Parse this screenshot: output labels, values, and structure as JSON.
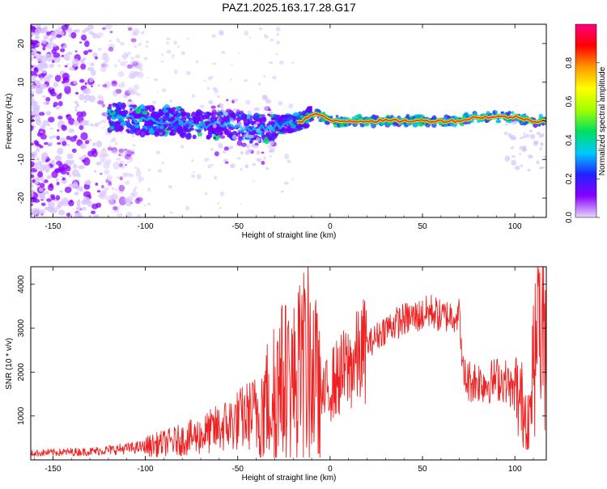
{
  "title": "PAZ1.2025.163.17.28.G17",
  "colors": {
    "snr_line": "#ee2222",
    "spectrum_ridge": "#ff2a2a",
    "scatter_main": "#8a00ff",
    "scatter_light": "#d7c3ff",
    "frame": "#000000"
  },
  "chart_data": [
    {
      "type": "heatmap",
      "title": "",
      "xlabel": "Height of straight line (km)",
      "ylabel": "Frequency (Hz)",
      "xlim": [
        -162,
        117
      ],
      "ylim": [
        -25,
        25
      ],
      "xticks": [
        -150,
        -100,
        -50,
        0,
        50,
        100
      ],
      "yticks": [
        -20,
        -10,
        0,
        10,
        20
      ],
      "colorbar": {
        "label": "Normalized spectral amplitude",
        "range": [
          0,
          1
        ],
        "ticks": [
          "0.0",
          "0.2",
          "0.4",
          "0.6",
          "0.8"
        ],
        "colors": [
          "#e8d8ff",
          "#8800ff",
          "#2222ff",
          "#00c8ff",
          "#00e060",
          "#a0ff00",
          "#ffff00",
          "#ff9900",
          "#ff0000",
          "#ff0080"
        ]
      },
      "ridge": {
        "x": [
          -115,
          -100,
          -85,
          -70,
          -55,
          -45,
          -35,
          -25,
          -15,
          -8,
          0,
          10,
          20,
          30,
          40,
          50,
          60,
          70,
          80,
          90,
          100,
          110,
          117
        ],
        "y": [
          1,
          0,
          0,
          -1,
          -1,
          -2,
          -2,
          -1,
          0,
          2,
          0,
          0,
          0,
          0,
          0,
          0,
          0,
          0,
          1,
          1,
          1,
          0,
          0
        ]
      }
    },
    {
      "type": "line",
      "title": "",
      "xlabel": "Height of straight line (km)",
      "ylabel": "SNR (10 * v/v)",
      "xlim": [
        -162,
        117
      ],
      "ylim": [
        0,
        4400
      ],
      "xticks": [
        -150,
        -100,
        -50,
        0,
        50,
        100
      ],
      "yticks": [
        1000,
        2000,
        3000,
        4000
      ],
      "series": [
        {
          "name": "",
          "x": [
            -162,
            -150,
            -130,
            -110,
            -100,
            -90,
            -80,
            -70,
            -60,
            -50,
            -40,
            -35,
            -30,
            -25,
            -20,
            -15,
            -10,
            -5,
            0,
            5,
            10,
            15,
            20,
            30,
            40,
            50,
            55,
            60,
            65,
            70,
            72,
            75,
            80,
            85,
            90,
            95,
            100,
            105,
            108,
            110,
            112,
            114,
            117
          ],
          "y": [
            150,
            170,
            190,
            260,
            300,
            380,
            460,
            560,
            720,
            900,
            1100,
            1300,
            1500,
            1800,
            1700,
            2100,
            2200,
            1300,
            1700,
            1900,
            2100,
            2300,
            2600,
            3000,
            3200,
            3300,
            3400,
            3250,
            3300,
            3300,
            1900,
            1800,
            1800,
            1750,
            1850,
            1800,
            1500,
            1200,
            1000,
            2200,
            3000,
            2800,
            2800
          ]
        }
      ]
    }
  ]
}
